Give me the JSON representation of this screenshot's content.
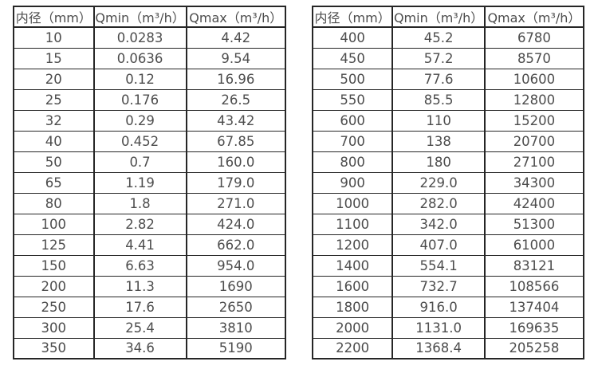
{
  "chart_data": [
    {
      "type": "table",
      "name": "flow-range-small-diameters",
      "headers": [
        "内径（mm）",
        "Qmin（m³/h）",
        "Qmax（m³/h）"
      ],
      "rows": [
        [
          "10",
          "0.0283",
          "4.42"
        ],
        [
          "15",
          "0.0636",
          "9.54"
        ],
        [
          "20",
          "0.12",
          "16.96"
        ],
        [
          "25",
          "0.176",
          "26.5"
        ],
        [
          "32",
          "0.29",
          "43.42"
        ],
        [
          "40",
          "0.452",
          "67.85"
        ],
        [
          "50",
          "0.7",
          "160.0"
        ],
        [
          "65",
          "1.19",
          "179.0"
        ],
        [
          "80",
          "1.8",
          "271.0"
        ],
        [
          "100",
          "2.82",
          "424.0"
        ],
        [
          "125",
          "4.41",
          "662.0"
        ],
        [
          "150",
          "6.63",
          "954.0"
        ],
        [
          "200",
          "11.3",
          "1690"
        ],
        [
          "250",
          "17.6",
          "2650"
        ],
        [
          "300",
          "25.4",
          "3810"
        ],
        [
          "350",
          "34.6",
          "5190"
        ]
      ]
    },
    {
      "type": "table",
      "name": "flow-range-large-diameters",
      "headers": [
        "内径（mm）",
        "Qmin（m³/h）",
        "Qmax（m³/h）"
      ],
      "rows": [
        [
          "400",
          "45.2",
          "6780"
        ],
        [
          "450",
          "57.2",
          "8570"
        ],
        [
          "500",
          "77.6",
          "10600"
        ],
        [
          "550",
          "85.5",
          "12800"
        ],
        [
          "600",
          "110",
          "15200"
        ],
        [
          "700",
          "138",
          "20700"
        ],
        [
          "800",
          "180",
          "27100"
        ],
        [
          "900",
          "229.0",
          "34300"
        ],
        [
          "1000",
          "282.0",
          "42400"
        ],
        [
          "1100",
          "342.0",
          "51300"
        ],
        [
          "1200",
          "407.0",
          "61000"
        ],
        [
          "1400",
          "554.1",
          "83121"
        ],
        [
          "1600",
          "732.7",
          "108566"
        ],
        [
          "1800",
          "916.0",
          "137404"
        ],
        [
          "2000",
          "1131.0",
          "169635"
        ],
        [
          "2200",
          "1368.4",
          "205258"
        ]
      ]
    }
  ],
  "colors": {
    "border": "#262626",
    "text": "#4d4d4d",
    "background": "#ffffff"
  }
}
